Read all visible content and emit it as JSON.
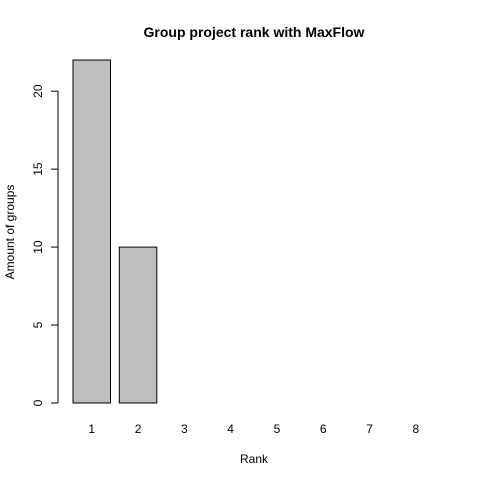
{
  "colors": {
    "bar_fill": "#bebebe",
    "bar_stroke": "#000000",
    "axis": "#000000",
    "background": "#ffffff"
  },
  "chart_data": {
    "type": "bar",
    "title": "Group project rank with MaxFlow",
    "xlabel": "Rank",
    "ylabel": "Amount of groups",
    "categories": [
      "1",
      "2",
      "3",
      "4",
      "5",
      "6",
      "7",
      "8"
    ],
    "values": [
      22,
      10,
      0,
      0,
      0,
      0,
      0,
      0
    ],
    "ylim": [
      0,
      22
    ],
    "yticks": [
      0,
      5,
      10,
      15,
      20
    ],
    "grid": false,
    "legend": "none"
  }
}
